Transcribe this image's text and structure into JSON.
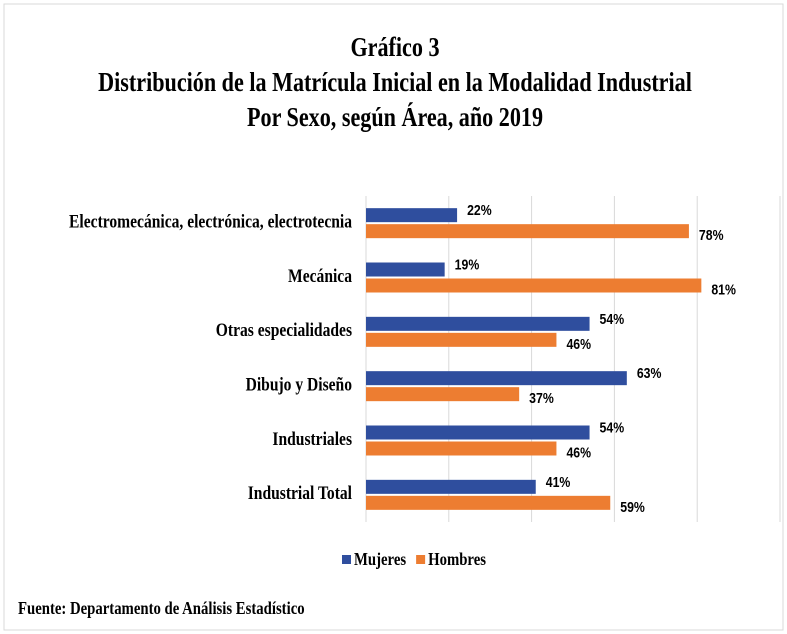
{
  "chart_data": {
    "type": "barh",
    "title": [
      "Gráfico 3",
      "Distribución de la Matrícula Inicial en la Modalidad Industrial",
      "Por Sexo, según Área, año 2019"
    ],
    "categories": [
      "Electromecánica, electrónica, electrotecnia",
      "Mecánica",
      "Otras especialidades",
      "Dibujo y Diseño",
      "Industriales",
      "Industrial Total"
    ],
    "series": [
      {
        "name": "Mujeres",
        "color": "#2f4e9e",
        "values": [
          22,
          19,
          54,
          63,
          54,
          41
        ],
        "value_labels": [
          "22%",
          "19%",
          "54%",
          "63%",
          "54%",
          "41%"
        ]
      },
      {
        "name": "Hombres",
        "color": "#ed7d31",
        "values": [
          78,
          81,
          46,
          37,
          46,
          59
        ],
        "value_labels": [
          "78%",
          "81%",
          "46%",
          "37%",
          "46%",
          "59%"
        ]
      }
    ],
    "xlim": [
      0,
      100
    ],
    "xticks": [
      0,
      20,
      40,
      60,
      80,
      100
    ],
    "grid": true,
    "legend": "bottom",
    "source": "Fuente: Departamento de Análisis Estadístico"
  }
}
